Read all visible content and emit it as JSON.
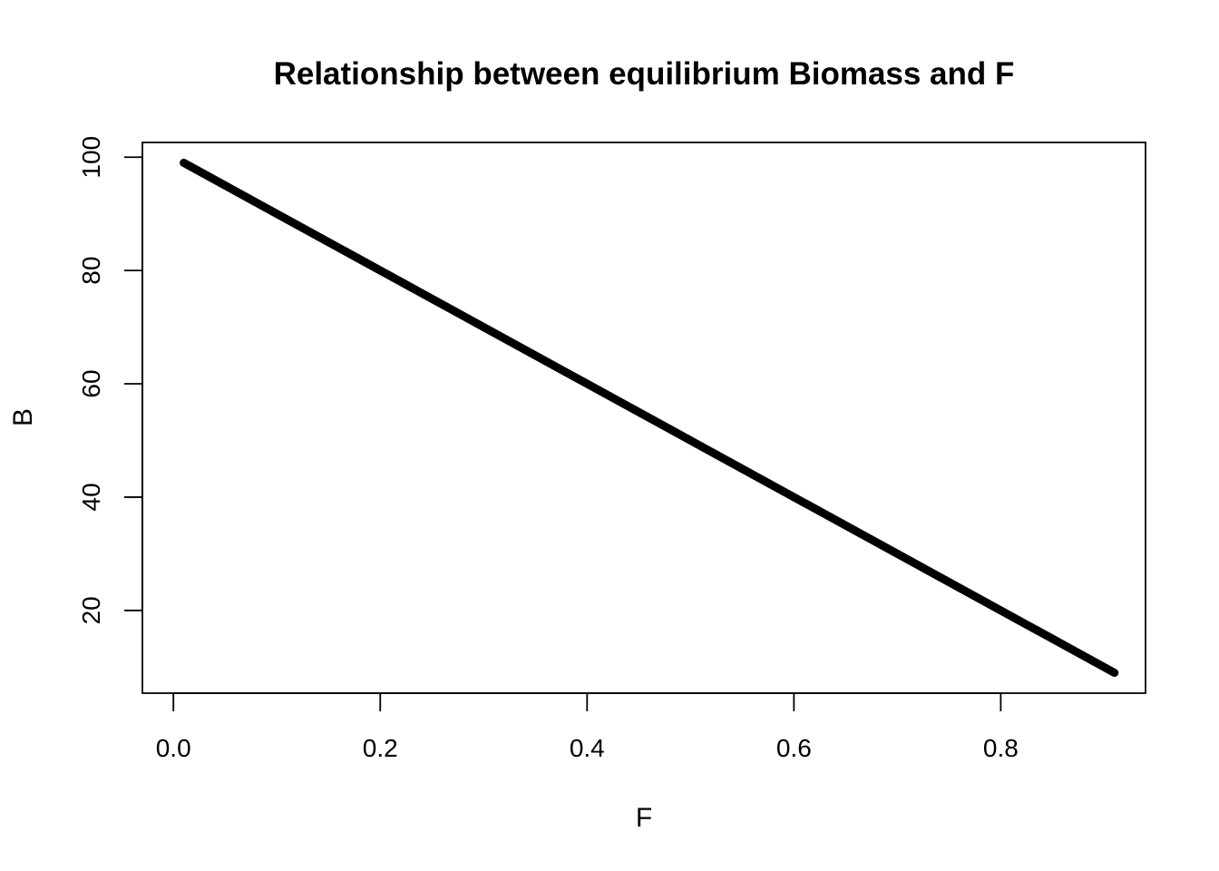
{
  "chart_data": {
    "type": "line",
    "title": "Relationship between equilibrium Biomass and F",
    "xlabel": "F",
    "ylabel": "B",
    "xlim": [
      -0.03,
      0.94
    ],
    "ylim": [
      5.4,
      102.6
    ],
    "xticks": [
      0.0,
      0.2,
      0.4,
      0.6,
      0.8
    ],
    "xtick_labels": [
      "0.0",
      "0.2",
      "0.4",
      "0.6",
      "0.8"
    ],
    "yticks": [
      20,
      40,
      60,
      80,
      100
    ],
    "ytick_labels": [
      "20",
      "40",
      "60",
      "80",
      "100"
    ],
    "grid": false,
    "legend": false,
    "series": [
      {
        "x": [
          0.01,
          0.91
        ],
        "y": [
          99,
          9
        ],
        "color": "#000000"
      }
    ]
  }
}
